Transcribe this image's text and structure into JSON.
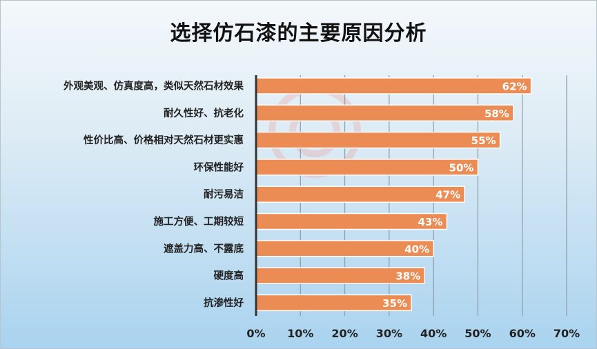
{
  "chart_data": {
    "type": "bar",
    "orientation": "horizontal",
    "title": "选择仿石漆的主要原因分析",
    "categories": [
      "外观美观、仿真度高，类似天然石材效果",
      "耐久性好、抗老化",
      "性价比高、价格相对天然石材更实惠",
      "环保性能好",
      "耐污易洁",
      "施工方便、工期较短",
      "遮盖力高、不露底",
      "硬度高",
      "抗渗性好"
    ],
    "values": [
      62,
      58,
      55,
      50,
      47,
      43,
      40,
      38,
      35
    ],
    "data_labels": [
      "62%",
      "58%",
      "55%",
      "50%",
      "47%",
      "43%",
      "40%",
      "38%",
      "35%"
    ],
    "xlim": [
      0,
      70
    ],
    "x_ticks": [
      0,
      10,
      20,
      30,
      40,
      50,
      60,
      70
    ],
    "x_tick_labels": [
      "0%",
      "10%",
      "20%",
      "30%",
      "40%",
      "50%",
      "60%",
      "70%"
    ],
    "grid": "vertical",
    "legend": "none",
    "colors": {
      "bar": "#ec8c55",
      "bar_edge": "#ffffff",
      "axis": "#333333",
      "grid": "#8a9aa6"
    }
  }
}
